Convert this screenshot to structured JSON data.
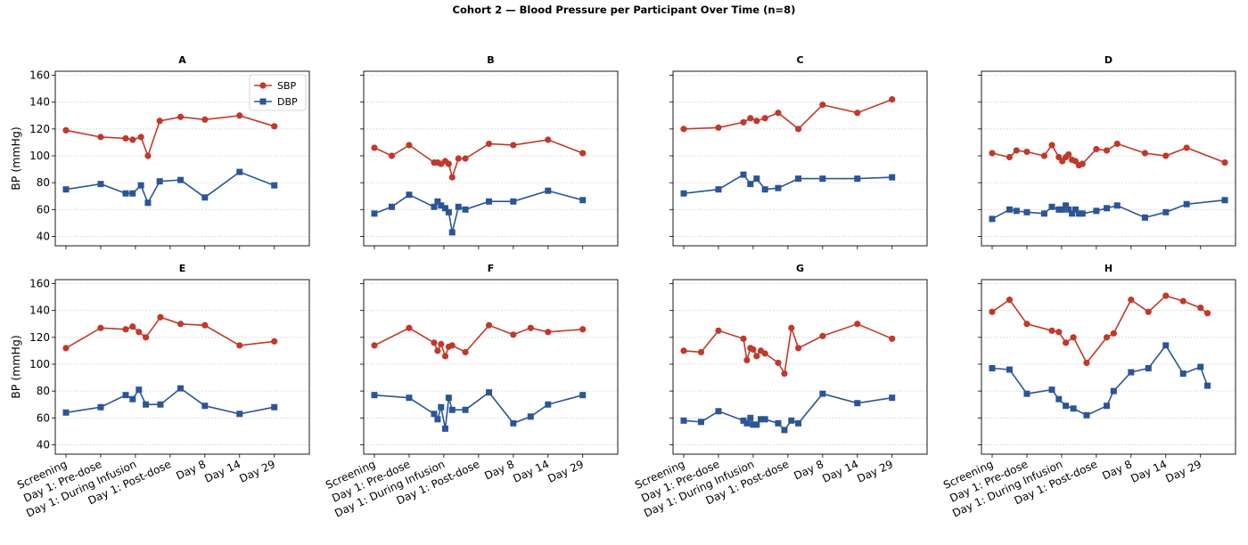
{
  "title": "Cohort 2 — Blood Pressure per Participant Over Time (n=8)",
  "chart_data": {
    "type": "line",
    "ylabel": "BP (mmHg)",
    "ylim": [
      33,
      163
    ],
    "yticks": [
      40,
      60,
      80,
      100,
      120,
      140,
      160
    ],
    "xticks": [
      "Screening",
      "Day 1: Pre-dose",
      "Day 1: During Infusion",
      "Day 1: Post-dose",
      "Day 8",
      "Day 14",
      "Day 29"
    ],
    "grid": "horizontal-dotted",
    "legend": {
      "placement": "top-right",
      "panel": "A",
      "entries": [
        "SBP",
        "DBP"
      ]
    },
    "colors": {
      "SBP": "#c0392b",
      "DBP": "#2c5597"
    },
    "panels": [
      {
        "title": "A",
        "sbp": [
          [
            0,
            119
          ],
          [
            1,
            114
          ],
          [
            1.72,
            113
          ],
          [
            1.92,
            112
          ],
          [
            2.16,
            114
          ],
          [
            2.36,
            100
          ],
          [
            2.7,
            126
          ],
          [
            3.3,
            129
          ],
          [
            4,
            127
          ],
          [
            5,
            130
          ],
          [
            6,
            122
          ]
        ],
        "dbp": [
          [
            0,
            75
          ],
          [
            1,
            79
          ],
          [
            1.72,
            72
          ],
          [
            1.92,
            72
          ],
          [
            2.16,
            78
          ],
          [
            2.36,
            65
          ],
          [
            2.7,
            81
          ],
          [
            3.3,
            82
          ],
          [
            4,
            69
          ],
          [
            5,
            88
          ],
          [
            6,
            78
          ]
        ]
      },
      {
        "title": "B",
        "sbp": [
          [
            0,
            106
          ],
          [
            0.5,
            100
          ],
          [
            1,
            108
          ],
          [
            1.72,
            95
          ],
          [
            1.82,
            95
          ],
          [
            1.92,
            94
          ],
          [
            2.04,
            96
          ],
          [
            2.14,
            94
          ],
          [
            2.24,
            84
          ],
          [
            2.42,
            98
          ],
          [
            2.62,
            98
          ],
          [
            3.3,
            109
          ],
          [
            4,
            108
          ],
          [
            5,
            112
          ],
          [
            6,
            102
          ]
        ],
        "dbp": [
          [
            0,
            57
          ],
          [
            0.5,
            62
          ],
          [
            1,
            71
          ],
          [
            1.72,
            62
          ],
          [
            1.82,
            66
          ],
          [
            1.92,
            63
          ],
          [
            2.04,
            61
          ],
          [
            2.14,
            58
          ],
          [
            2.24,
            43
          ],
          [
            2.42,
            62
          ],
          [
            2.62,
            60
          ],
          [
            3.3,
            66
          ],
          [
            4,
            66
          ],
          [
            5,
            74
          ],
          [
            6,
            67
          ]
        ]
      },
      {
        "title": "C",
        "sbp": [
          [
            0,
            120
          ],
          [
            1,
            121
          ],
          [
            1.72,
            125
          ],
          [
            1.92,
            128
          ],
          [
            2.1,
            126
          ],
          [
            2.34,
            128
          ],
          [
            2.72,
            132
          ],
          [
            3.3,
            120
          ],
          [
            4,
            138
          ],
          [
            5,
            132
          ],
          [
            6,
            142
          ]
        ],
        "dbp": [
          [
            0,
            72
          ],
          [
            1,
            75
          ],
          [
            1.72,
            86
          ],
          [
            1.92,
            79
          ],
          [
            2.1,
            83
          ],
          [
            2.34,
            75
          ],
          [
            2.72,
            76
          ],
          [
            3.3,
            83
          ],
          [
            4,
            83
          ],
          [
            5,
            83
          ],
          [
            6,
            84
          ]
        ]
      },
      {
        "title": "D",
        "sbp": [
          [
            0,
            102
          ],
          [
            0.5,
            99
          ],
          [
            0.7,
            104
          ],
          [
            1,
            103
          ],
          [
            1.5,
            100
          ],
          [
            1.72,
            108
          ],
          [
            1.92,
            99
          ],
          [
            2.02,
            96
          ],
          [
            2.12,
            99
          ],
          [
            2.2,
            101
          ],
          [
            2.3,
            97
          ],
          [
            2.4,
            96
          ],
          [
            2.5,
            93
          ],
          [
            2.6,
            94
          ],
          [
            3,
            105
          ],
          [
            3.3,
            104
          ],
          [
            3.6,
            109
          ],
          [
            4.4,
            102
          ],
          [
            5,
            100
          ],
          [
            5.6,
            106
          ],
          [
            6.7,
            95
          ]
        ],
        "dbp": [
          [
            0,
            53
          ],
          [
            0.5,
            60
          ],
          [
            0.7,
            59
          ],
          [
            1,
            58
          ],
          [
            1.5,
            57
          ],
          [
            1.72,
            62
          ],
          [
            1.92,
            60
          ],
          [
            2.02,
            60
          ],
          [
            2.12,
            63
          ],
          [
            2.2,
            60
          ],
          [
            2.3,
            57
          ],
          [
            2.4,
            60
          ],
          [
            2.5,
            57
          ],
          [
            2.6,
            57
          ],
          [
            3,
            59
          ],
          [
            3.3,
            61
          ],
          [
            3.6,
            63
          ],
          [
            4.4,
            54
          ],
          [
            5,
            58
          ],
          [
            5.6,
            64
          ],
          [
            6.7,
            67
          ]
        ]
      },
      {
        "title": "E",
        "sbp": [
          [
            0,
            112
          ],
          [
            1,
            127
          ],
          [
            1.72,
            126
          ],
          [
            1.92,
            128
          ],
          [
            2.1,
            124
          ],
          [
            2.3,
            120
          ],
          [
            2.72,
            135
          ],
          [
            3.3,
            130
          ],
          [
            4,
            129
          ],
          [
            5,
            114
          ],
          [
            6,
            117
          ]
        ],
        "dbp": [
          [
            0,
            64
          ],
          [
            1,
            68
          ],
          [
            1.72,
            77
          ],
          [
            1.92,
            74
          ],
          [
            2.1,
            81
          ],
          [
            2.3,
            70
          ],
          [
            2.72,
            70
          ],
          [
            3.3,
            82
          ],
          [
            4,
            69
          ],
          [
            5,
            63
          ],
          [
            6,
            68
          ]
        ]
      },
      {
        "title": "F",
        "sbp": [
          [
            0,
            114
          ],
          [
            1,
            127
          ],
          [
            1.72,
            116
          ],
          [
            1.82,
            110
          ],
          [
            1.92,
            115
          ],
          [
            2.04,
            106
          ],
          [
            2.14,
            113
          ],
          [
            2.24,
            114
          ],
          [
            2.62,
            109
          ],
          [
            3.3,
            129
          ],
          [
            4,
            122
          ],
          [
            4.5,
            127
          ],
          [
            5,
            124
          ],
          [
            6,
            126
          ]
        ],
        "dbp": [
          [
            0,
            77
          ],
          [
            1,
            75
          ],
          [
            1.72,
            63
          ],
          [
            1.82,
            59
          ],
          [
            1.92,
            68
          ],
          [
            2.04,
            52
          ],
          [
            2.14,
            75
          ],
          [
            2.24,
            66
          ],
          [
            2.62,
            66
          ],
          [
            3.3,
            79
          ],
          [
            4,
            56
          ],
          [
            4.5,
            61
          ],
          [
            5,
            70
          ],
          [
            6,
            77
          ]
        ]
      },
      {
        "title": "G",
        "sbp": [
          [
            0,
            110
          ],
          [
            0.5,
            109
          ],
          [
            1,
            125
          ],
          [
            1.72,
            119
          ],
          [
            1.82,
            103
          ],
          [
            1.92,
            112
          ],
          [
            2,
            111
          ],
          [
            2.1,
            106
          ],
          [
            2.22,
            110
          ],
          [
            2.34,
            108
          ],
          [
            2.72,
            101
          ],
          [
            2.9,
            93
          ],
          [
            3.1,
            127
          ],
          [
            3.3,
            112
          ],
          [
            4,
            121
          ],
          [
            5,
            130
          ],
          [
            6,
            119
          ]
        ],
        "dbp": [
          [
            0,
            58
          ],
          [
            0.5,
            57
          ],
          [
            1,
            65
          ],
          [
            1.72,
            58
          ],
          [
            1.82,
            56
          ],
          [
            1.92,
            60
          ],
          [
            2,
            55
          ],
          [
            2.1,
            55
          ],
          [
            2.22,
            59
          ],
          [
            2.34,
            59
          ],
          [
            2.72,
            56
          ],
          [
            2.9,
            51
          ],
          [
            3.1,
            58
          ],
          [
            3.3,
            56
          ],
          [
            4,
            78
          ],
          [
            5,
            71
          ],
          [
            6,
            75
          ]
        ]
      },
      {
        "title": "H",
        "sbp": [
          [
            0,
            139
          ],
          [
            0.5,
            148
          ],
          [
            1,
            130
          ],
          [
            1.72,
            125
          ],
          [
            1.92,
            124
          ],
          [
            2.12,
            116
          ],
          [
            2.34,
            120
          ],
          [
            2.72,
            101
          ],
          [
            3.3,
            120
          ],
          [
            3.5,
            123
          ],
          [
            4,
            148
          ],
          [
            4.5,
            139
          ],
          [
            5,
            151
          ],
          [
            5.5,
            147
          ],
          [
            6,
            142
          ],
          [
            6.2,
            138
          ]
        ],
        "dbp": [
          [
            0,
            97
          ],
          [
            0.5,
            96
          ],
          [
            1,
            78
          ],
          [
            1.72,
            81
          ],
          [
            1.92,
            74
          ],
          [
            2.12,
            69
          ],
          [
            2.34,
            67
          ],
          [
            2.72,
            62
          ],
          [
            3.3,
            69
          ],
          [
            3.5,
            80
          ],
          [
            4,
            94
          ],
          [
            4.5,
            97
          ],
          [
            5,
            114
          ],
          [
            5.5,
            93
          ],
          [
            6,
            98
          ],
          [
            6.2,
            84
          ]
        ]
      }
    ]
  }
}
